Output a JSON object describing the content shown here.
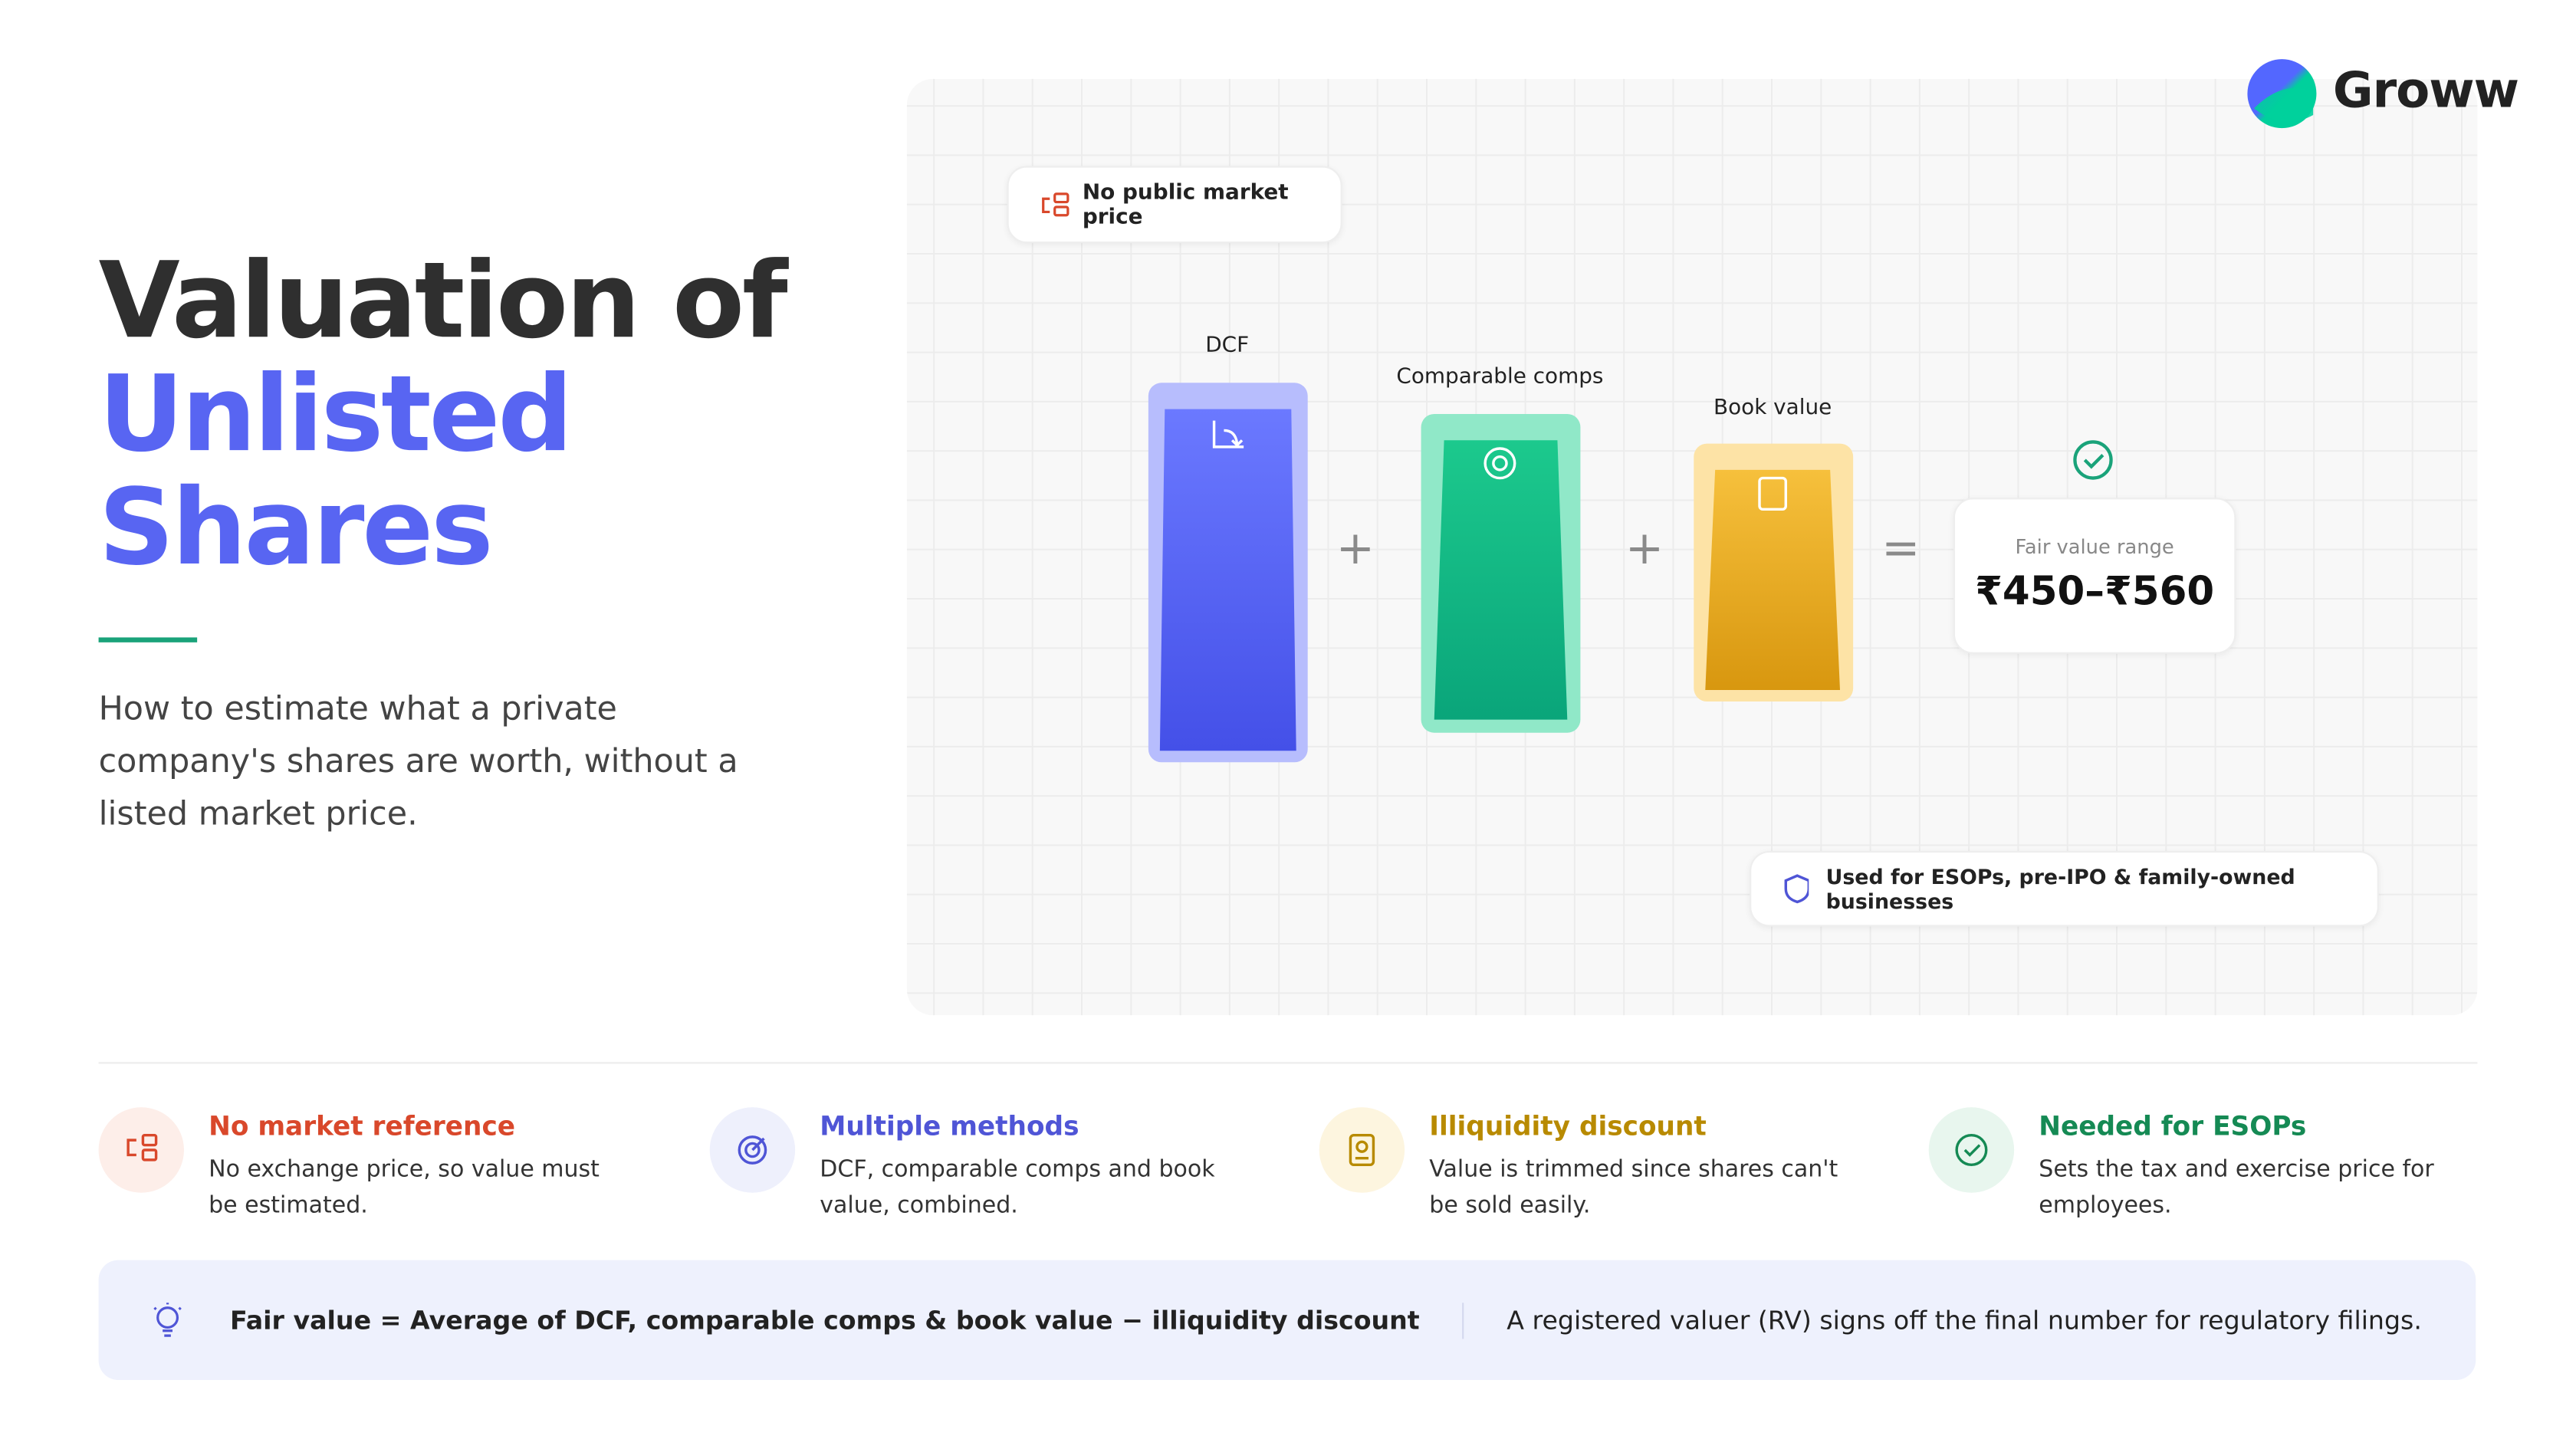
{
  "brand": "Groww",
  "header": {
    "title": "Valuation of",
    "highlight": [
      "Unlisted",
      "Shares"
    ],
    "subtitle": "How to estimate what a private company's shares are worth, without a listed market price."
  },
  "diagram": {
    "badge": "No public market price",
    "methods": [
      "DCF",
      "Comparable comps",
      "Book value"
    ],
    "operators": [
      "+",
      "+",
      "="
    ],
    "result": {
      "label": "Fair value range",
      "value": "₹450–₹560"
    },
    "footnote": "Used for ESOPs, pre-IPO & family-owned businesses"
  },
  "features": [
    {
      "title": "No market reference",
      "text": "No exchange price, so value must be estimated."
    },
    {
      "title": "Multiple methods",
      "text": "DCF, comparable comps and book value, combined."
    },
    {
      "title": "Illiquidity discount",
      "text": "Value is trimmed since shares can't be sold easily."
    },
    {
      "title": "Needed for ESOPs",
      "text": "Sets the tax and exercise price for employees."
    }
  ],
  "callout": {
    "formula": "Fair value = Average of DCF, comparable comps & book value − illiquidity discount",
    "note": "A registered valuer (RV) signs off the final number for regulatory filings."
  }
}
